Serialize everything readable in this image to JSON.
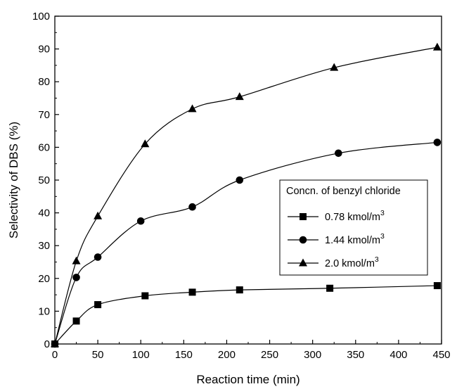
{
  "chart_data": {
    "type": "line",
    "xlabel": "Reaction time (min)",
    "ylabel": "Selectivity of DBS (%)",
    "xlim": [
      0,
      450
    ],
    "ylim": [
      0,
      100
    ],
    "xticks": [
      0,
      50,
      100,
      150,
      200,
      250,
      300,
      350,
      400,
      450
    ],
    "yticks": [
      0,
      10,
      20,
      30,
      40,
      50,
      60,
      70,
      80,
      90,
      100
    ],
    "grid": false,
    "legend": {
      "title": "Concn. of benzyl chloride",
      "placement": "center-right"
    },
    "series": [
      {
        "name": "0.78 kmol/m",
        "unit_superscript": "3",
        "marker": "square",
        "x": [
          0,
          25,
          50,
          105,
          160,
          215,
          320,
          445
        ],
        "y": [
          0,
          7,
          12,
          14.7,
          15.8,
          16.5,
          17.0,
          17.8
        ]
      },
      {
        "name": "1.44 kmol/m",
        "unit_superscript": "3",
        "marker": "circle",
        "x": [
          0,
          25,
          50,
          100,
          160,
          215,
          330,
          445
        ],
        "y": [
          0,
          20.3,
          26.5,
          37.5,
          41.8,
          50.0,
          58.2,
          61.5
        ]
      },
      {
        "name": "2.0 kmol/m",
        "unit_superscript": "3",
        "marker": "triangle",
        "x": [
          0,
          25,
          50,
          105,
          160,
          215,
          325,
          445
        ],
        "y": [
          0,
          25.3,
          39.0,
          61.0,
          71.7,
          75.4,
          84.3,
          90.5
        ]
      }
    ]
  }
}
